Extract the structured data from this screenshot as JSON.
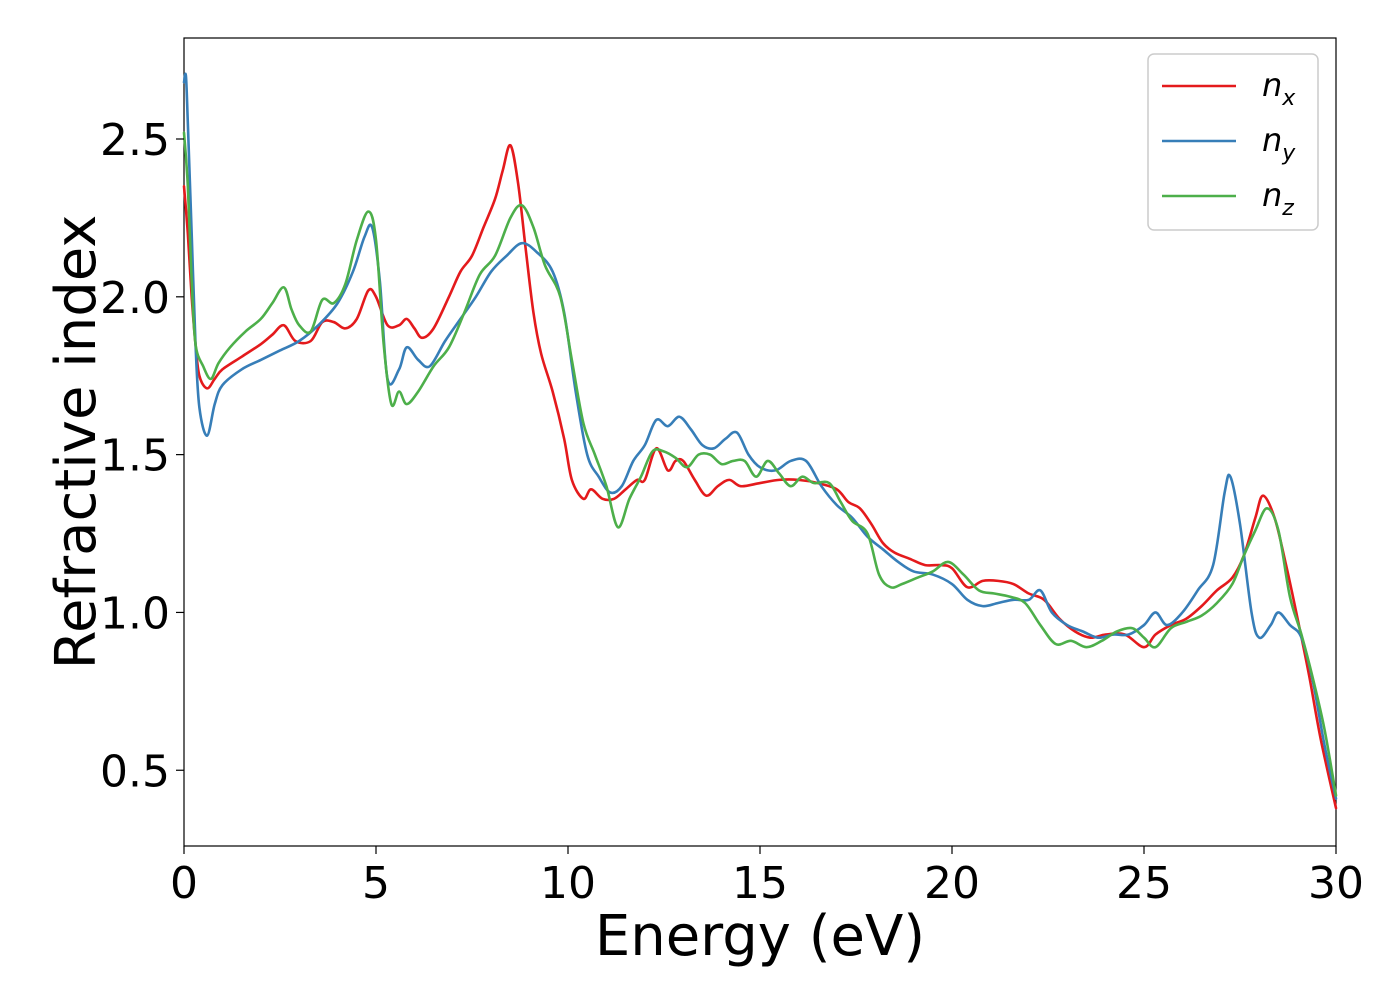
{
  "chart_data": {
    "type": "line",
    "xlabel": "Energy (eV)",
    "ylabel": "Refractive index",
    "xlim": [
      0,
      30
    ],
    "ylim": [
      0.26,
      2.82
    ],
    "xticks": [
      "0",
      "5",
      "10",
      "15",
      "20",
      "25",
      "30"
    ],
    "yticks": [
      "0.5",
      "1.0",
      "1.5",
      "2.0",
      "2.5"
    ],
    "grid": false,
    "legend_position": "top-right",
    "series": [
      {
        "name": "n",
        "subscript": "x",
        "color": "#e41a1c",
        "points": [
          [
            0.0,
            2.35
          ],
          [
            0.1,
            2.2
          ],
          [
            0.2,
            2.0
          ],
          [
            0.3,
            1.85
          ],
          [
            0.4,
            1.75
          ],
          [
            0.6,
            1.71
          ],
          [
            0.8,
            1.74
          ],
          [
            1.0,
            1.77
          ],
          [
            1.5,
            1.81
          ],
          [
            2.0,
            1.85
          ],
          [
            2.3,
            1.88
          ],
          [
            2.6,
            1.91
          ],
          [
            2.9,
            1.86
          ],
          [
            3.3,
            1.86
          ],
          [
            3.6,
            1.92
          ],
          [
            3.9,
            1.92
          ],
          [
            4.2,
            1.9
          ],
          [
            4.5,
            1.93
          ],
          [
            4.8,
            2.02
          ],
          [
            5.0,
            2.0
          ],
          [
            5.3,
            1.91
          ],
          [
            5.6,
            1.91
          ],
          [
            5.8,
            1.93
          ],
          [
            6.0,
            1.9
          ],
          [
            6.2,
            1.87
          ],
          [
            6.5,
            1.9
          ],
          [
            6.9,
            2.0
          ],
          [
            7.2,
            2.08
          ],
          [
            7.5,
            2.13
          ],
          [
            7.8,
            2.22
          ],
          [
            8.1,
            2.31
          ],
          [
            8.3,
            2.4
          ],
          [
            8.5,
            2.48
          ],
          [
            8.7,
            2.36
          ],
          [
            8.9,
            2.15
          ],
          [
            9.1,
            1.95
          ],
          [
            9.3,
            1.82
          ],
          [
            9.6,
            1.7
          ],
          [
            9.9,
            1.55
          ],
          [
            10.1,
            1.42
          ],
          [
            10.4,
            1.36
          ],
          [
            10.6,
            1.39
          ],
          [
            10.9,
            1.36
          ],
          [
            11.2,
            1.36
          ],
          [
            11.5,
            1.39
          ],
          [
            11.8,
            1.42
          ],
          [
            12.0,
            1.42
          ],
          [
            12.3,
            1.52
          ],
          [
            12.6,
            1.45
          ],
          [
            12.8,
            1.48
          ],
          [
            13.0,
            1.48
          ],
          [
            13.3,
            1.42
          ],
          [
            13.6,
            1.37
          ],
          [
            13.9,
            1.4
          ],
          [
            14.2,
            1.42
          ],
          [
            14.5,
            1.4
          ],
          [
            15.0,
            1.41
          ],
          [
            15.5,
            1.42
          ],
          [
            16.0,
            1.42
          ],
          [
            16.5,
            1.41
          ],
          [
            17.0,
            1.39
          ],
          [
            17.3,
            1.35
          ],
          [
            17.6,
            1.33
          ],
          [
            17.9,
            1.28
          ],
          [
            18.2,
            1.22
          ],
          [
            18.5,
            1.19
          ],
          [
            18.9,
            1.17
          ],
          [
            19.3,
            1.15
          ],
          [
            19.7,
            1.15
          ],
          [
            20.0,
            1.14
          ],
          [
            20.4,
            1.08
          ],
          [
            20.8,
            1.1
          ],
          [
            21.2,
            1.1
          ],
          [
            21.6,
            1.09
          ],
          [
            22.0,
            1.06
          ],
          [
            22.4,
            1.04
          ],
          [
            22.8,
            0.98
          ],
          [
            23.2,
            0.94
          ],
          [
            23.6,
            0.92
          ],
          [
            24.0,
            0.93
          ],
          [
            24.5,
            0.93
          ],
          [
            25.0,
            0.89
          ],
          [
            25.3,
            0.93
          ],
          [
            25.7,
            0.96
          ],
          [
            26.1,
            0.98
          ],
          [
            26.5,
            1.02
          ],
          [
            26.9,
            1.07
          ],
          [
            27.3,
            1.11
          ],
          [
            27.6,
            1.18
          ],
          [
            27.9,
            1.3
          ],
          [
            28.1,
            1.37
          ],
          [
            28.4,
            1.3
          ],
          [
            28.7,
            1.15
          ],
          [
            29.0,
            0.98
          ],
          [
            29.3,
            0.8
          ],
          [
            29.6,
            0.6
          ],
          [
            30.0,
            0.38
          ]
        ]
      },
      {
        "name": "n",
        "subscript": "y",
        "color": "#377eb8",
        "points": [
          [
            0.0,
            2.68
          ],
          [
            0.05,
            2.7
          ],
          [
            0.1,
            2.55
          ],
          [
            0.2,
            2.2
          ],
          [
            0.3,
            1.85
          ],
          [
            0.4,
            1.65
          ],
          [
            0.6,
            1.56
          ],
          [
            0.8,
            1.66
          ],
          [
            1.0,
            1.72
          ],
          [
            1.5,
            1.77
          ],
          [
            2.0,
            1.8
          ],
          [
            2.5,
            1.83
          ],
          [
            3.0,
            1.86
          ],
          [
            3.5,
            1.91
          ],
          [
            4.0,
            1.98
          ],
          [
            4.4,
            2.08
          ],
          [
            4.7,
            2.19
          ],
          [
            4.9,
            2.22
          ],
          [
            5.1,
            2.05
          ],
          [
            5.3,
            1.74
          ],
          [
            5.6,
            1.77
          ],
          [
            5.8,
            1.84
          ],
          [
            6.1,
            1.8
          ],
          [
            6.4,
            1.78
          ],
          [
            6.8,
            1.86
          ],
          [
            7.2,
            1.93
          ],
          [
            7.6,
            2.0
          ],
          [
            8.0,
            2.08
          ],
          [
            8.4,
            2.13
          ],
          [
            8.8,
            2.17
          ],
          [
            9.2,
            2.14
          ],
          [
            9.6,
            2.08
          ],
          [
            9.9,
            1.95
          ],
          [
            10.2,
            1.7
          ],
          [
            10.5,
            1.5
          ],
          [
            10.8,
            1.43
          ],
          [
            11.1,
            1.38
          ],
          [
            11.4,
            1.4
          ],
          [
            11.7,
            1.48
          ],
          [
            12.0,
            1.53
          ],
          [
            12.3,
            1.61
          ],
          [
            12.6,
            1.59
          ],
          [
            12.9,
            1.62
          ],
          [
            13.2,
            1.58
          ],
          [
            13.5,
            1.53
          ],
          [
            13.8,
            1.52
          ],
          [
            14.1,
            1.55
          ],
          [
            14.4,
            1.57
          ],
          [
            14.7,
            1.5
          ],
          [
            15.0,
            1.46
          ],
          [
            15.4,
            1.45
          ],
          [
            15.8,
            1.48
          ],
          [
            16.2,
            1.48
          ],
          [
            16.6,
            1.4
          ],
          [
            17.0,
            1.34
          ],
          [
            17.4,
            1.3
          ],
          [
            17.8,
            1.24
          ],
          [
            18.2,
            1.2
          ],
          [
            18.6,
            1.16
          ],
          [
            19.0,
            1.13
          ],
          [
            19.5,
            1.12
          ],
          [
            20.0,
            1.09
          ],
          [
            20.4,
            1.04
          ],
          [
            20.8,
            1.02
          ],
          [
            21.2,
            1.03
          ],
          [
            21.6,
            1.04
          ],
          [
            22.0,
            1.04
          ],
          [
            22.3,
            1.07
          ],
          [
            22.6,
            1.0
          ],
          [
            23.0,
            0.96
          ],
          [
            23.4,
            0.94
          ],
          [
            23.8,
            0.92
          ],
          [
            24.2,
            0.93
          ],
          [
            24.6,
            0.93
          ],
          [
            25.0,
            0.96
          ],
          [
            25.3,
            1.0
          ],
          [
            25.6,
            0.96
          ],
          [
            26.0,
            1.0
          ],
          [
            26.4,
            1.07
          ],
          [
            26.8,
            1.15
          ],
          [
            27.1,
            1.38
          ],
          [
            27.25,
            1.43
          ],
          [
            27.5,
            1.28
          ],
          [
            27.8,
            1.0
          ],
          [
            28.0,
            0.92
          ],
          [
            28.3,
            0.96
          ],
          [
            28.5,
            1.0
          ],
          [
            28.8,
            0.96
          ],
          [
            29.1,
            0.92
          ],
          [
            29.4,
            0.78
          ],
          [
            29.7,
            0.58
          ],
          [
            30.0,
            0.41
          ]
        ]
      },
      {
        "name": "n",
        "subscript": "z",
        "color": "#4daf4a",
        "points": [
          [
            0.0,
            2.52
          ],
          [
            0.1,
            2.35
          ],
          [
            0.2,
            2.05
          ],
          [
            0.3,
            1.85
          ],
          [
            0.5,
            1.78
          ],
          [
            0.7,
            1.74
          ],
          [
            0.9,
            1.79
          ],
          [
            1.2,
            1.84
          ],
          [
            1.6,
            1.89
          ],
          [
            2.0,
            1.93
          ],
          [
            2.3,
            1.98
          ],
          [
            2.6,
            2.03
          ],
          [
            2.8,
            1.96
          ],
          [
            3.0,
            1.91
          ],
          [
            3.3,
            1.89
          ],
          [
            3.6,
            1.99
          ],
          [
            3.9,
            1.98
          ],
          [
            4.2,
            2.04
          ],
          [
            4.5,
            2.18
          ],
          [
            4.8,
            2.27
          ],
          [
            5.0,
            2.18
          ],
          [
            5.2,
            1.85
          ],
          [
            5.4,
            1.66
          ],
          [
            5.6,
            1.7
          ],
          [
            5.8,
            1.66
          ],
          [
            6.1,
            1.7
          ],
          [
            6.5,
            1.78
          ],
          [
            6.9,
            1.84
          ],
          [
            7.3,
            1.95
          ],
          [
            7.7,
            2.07
          ],
          [
            8.1,
            2.13
          ],
          [
            8.5,
            2.25
          ],
          [
            8.8,
            2.29
          ],
          [
            9.1,
            2.22
          ],
          [
            9.4,
            2.1
          ],
          [
            9.8,
            2.0
          ],
          [
            10.1,
            1.8
          ],
          [
            10.4,
            1.6
          ],
          [
            10.7,
            1.5
          ],
          [
            11.0,
            1.4
          ],
          [
            11.3,
            1.27
          ],
          [
            11.6,
            1.36
          ],
          [
            11.9,
            1.43
          ],
          [
            12.2,
            1.51
          ],
          [
            12.5,
            1.51
          ],
          [
            12.8,
            1.49
          ],
          [
            13.1,
            1.46
          ],
          [
            13.4,
            1.5
          ],
          [
            13.7,
            1.5
          ],
          [
            14.0,
            1.47
          ],
          [
            14.3,
            1.48
          ],
          [
            14.6,
            1.48
          ],
          [
            14.9,
            1.43
          ],
          [
            15.2,
            1.48
          ],
          [
            15.5,
            1.44
          ],
          [
            15.8,
            1.4
          ],
          [
            16.1,
            1.43
          ],
          [
            16.4,
            1.41
          ],
          [
            16.8,
            1.41
          ],
          [
            17.1,
            1.35
          ],
          [
            17.4,
            1.29
          ],
          [
            17.8,
            1.25
          ],
          [
            18.1,
            1.12
          ],
          [
            18.4,
            1.08
          ],
          [
            18.7,
            1.09
          ],
          [
            19.1,
            1.11
          ],
          [
            19.5,
            1.13
          ],
          [
            19.9,
            1.16
          ],
          [
            20.3,
            1.12
          ],
          [
            20.7,
            1.07
          ],
          [
            21.1,
            1.06
          ],
          [
            21.5,
            1.05
          ],
          [
            21.9,
            1.03
          ],
          [
            22.3,
            0.96
          ],
          [
            22.7,
            0.9
          ],
          [
            23.1,
            0.91
          ],
          [
            23.5,
            0.89
          ],
          [
            23.9,
            0.91
          ],
          [
            24.3,
            0.94
          ],
          [
            24.7,
            0.95
          ],
          [
            25.0,
            0.92
          ],
          [
            25.3,
            0.89
          ],
          [
            25.7,
            0.95
          ],
          [
            26.1,
            0.97
          ],
          [
            26.5,
            0.99
          ],
          [
            26.9,
            1.03
          ],
          [
            27.3,
            1.09
          ],
          [
            27.6,
            1.18
          ],
          [
            27.9,
            1.26
          ],
          [
            28.2,
            1.33
          ],
          [
            28.5,
            1.26
          ],
          [
            28.8,
            1.05
          ],
          [
            29.1,
            0.93
          ],
          [
            29.4,
            0.79
          ],
          [
            29.7,
            0.63
          ],
          [
            30.0,
            0.42
          ]
        ]
      }
    ]
  }
}
